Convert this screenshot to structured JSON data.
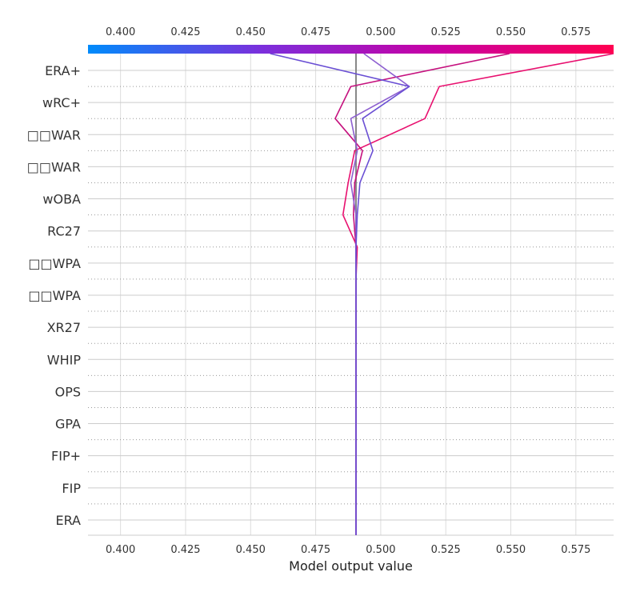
{
  "chart_data": {
    "type": "line",
    "subtype": "shap-decision-plot",
    "xlabel": "Model output value",
    "xlim": [
      0.3875,
      0.5895
    ],
    "xticks": [
      0.4,
      0.425,
      0.45,
      0.475,
      0.5,
      0.525,
      0.55,
      0.575
    ],
    "xtick_labels": [
      "0.400",
      "0.425",
      "0.450",
      "0.475",
      "0.500",
      "0.525",
      "0.550",
      "0.575"
    ],
    "base_value": 0.4905,
    "grid": true,
    "colorbar": {
      "position": "top",
      "colors": [
        "#008bfb",
        "#7b2fdc",
        "#c800a4",
        "#ff0051"
      ]
    },
    "features": [
      "ERA+",
      "wRC+",
      "□□WAR",
      "□□WAR",
      "wOBA",
      "RC27",
      "□□WPA",
      "□□WPA",
      "XR27",
      "WHIP",
      "OPS",
      "GPA",
      "FIP+",
      "FIP",
      "ERA"
    ],
    "series": [
      {
        "color": "#e8106f",
        "values": [
          0.5895,
          0.5225,
          0.517,
          0.49,
          0.4875,
          0.4855,
          0.491,
          0.4905,
          0.4905,
          0.4905,
          0.4905,
          0.4905,
          0.4905,
          0.4905,
          0.4905,
          0.4905
        ]
      },
      {
        "color": "#c5117e",
        "values": [
          0.5495,
          0.4885,
          0.4825,
          0.493,
          0.49,
          0.4895,
          0.4905,
          0.4905,
          0.4905,
          0.4905,
          0.4905,
          0.4905,
          0.4905,
          0.4905,
          0.4905,
          0.4905
        ]
      },
      {
        "color": "#8d5fd0",
        "values": [
          0.4935,
          0.511,
          0.4885,
          0.491,
          0.4885,
          0.4905,
          0.4905,
          0.4905,
          0.4905,
          0.4905,
          0.4905,
          0.4905,
          0.4905,
          0.4905,
          0.4905,
          0.4905
        ]
      },
      {
        "color": "#6a4fd4",
        "values": [
          0.4575,
          0.511,
          0.493,
          0.497,
          0.492,
          0.491,
          0.4905,
          0.4905,
          0.4905,
          0.4905,
          0.4905,
          0.4905,
          0.4905,
          0.4905,
          0.4905,
          0.4905
        ]
      }
    ]
  }
}
